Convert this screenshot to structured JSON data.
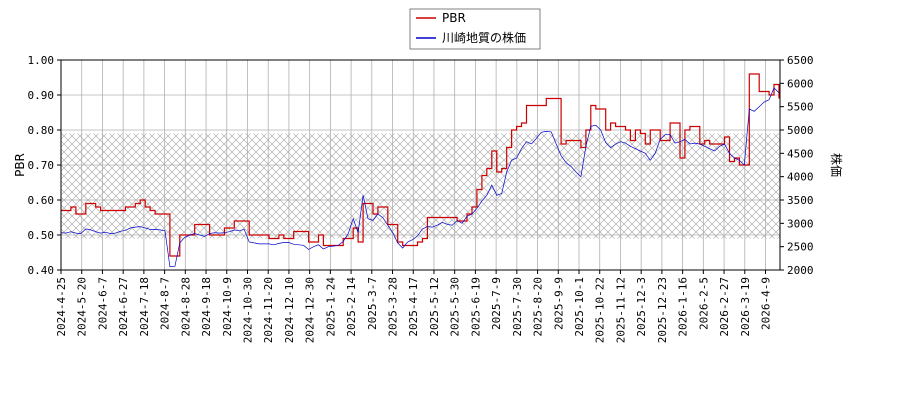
{
  "chart_data": {
    "type": "line",
    "title": "",
    "xlabel": "",
    "ylabel_left": "PBR",
    "ylabel_right": "株価",
    "ylim_left": [
      0.4,
      1.0
    ],
    "ylim_right": [
      2000,
      6500
    ],
    "yticks_left": [
      "0.40",
      "0.50",
      "0.60",
      "0.70",
      "0.80",
      "0.90",
      "1.00"
    ],
    "yticks_right": [
      "2000",
      "2500",
      "3000",
      "3500",
      "4000",
      "4500",
      "5000",
      "5500",
      "6000",
      "6500"
    ],
    "x_ticks": [
      "2024-4-25",
      "2024-5-20",
      "2024-6-7",
      "2024-6-27",
      "2024-7-18",
      "2024-8-7",
      "2024-8-28",
      "2024-9-18",
      "2024-10-9",
      "2024-10-30",
      "2024-11-20",
      "2024-12-10",
      "2024-12-30",
      "2025-1-24",
      "2025-2-14",
      "2025-3-7",
      "2025-3-28",
      "2025-4-17",
      "2025-5-12",
      "2025-5-30",
      "2025-6-19",
      "2025-7-9",
      "2025-7-30",
      "2025-8-20",
      "2025-9-9",
      "2025-10-1",
      "2025-10-22",
      "2025-11-12",
      "2025-12-3",
      "2025-12-23",
      "2026-1-16",
      "2026-2-5",
      "2026-2-27",
      "2026-3-19",
      "2026-4-9"
    ],
    "grid": true,
    "legend_position": "top-center",
    "shaded_band_left": [
      0.49,
      0.79
    ],
    "colors": {
      "pbr": "#cc0000",
      "price": "#0000cc",
      "grid": "#b0b0b0",
      "band": "#a0a0a0"
    },
    "series": [
      {
        "name": "PBR",
        "axis": "left",
        "values": [
          0.57,
          0.57,
          0.58,
          0.56,
          0.56,
          0.59,
          0.59,
          0.58,
          0.57,
          0.57,
          0.57,
          0.57,
          0.57,
          0.58,
          0.58,
          0.59,
          0.6,
          0.58,
          0.57,
          0.56,
          0.56,
          0.56,
          0.44,
          0.44,
          0.5,
          0.5,
          0.5,
          0.53,
          0.53,
          0.53,
          0.5,
          0.5,
          0.5,
          0.52,
          0.52,
          0.54,
          0.54,
          0.54,
          0.5,
          0.5,
          0.5,
          0.5,
          0.49,
          0.49,
          0.5,
          0.49,
          0.49,
          0.51,
          0.51,
          0.51,
          0.48,
          0.48,
          0.5,
          0.47,
          0.47,
          0.47,
          0.47,
          0.49,
          0.49,
          0.52,
          0.48,
          0.59,
          0.59,
          0.56,
          0.58,
          0.58,
          0.53,
          0.53,
          0.48,
          0.47,
          0.47,
          0.47,
          0.48,
          0.49,
          0.55,
          0.55,
          0.55,
          0.55,
          0.55,
          0.55,
          0.54,
          0.54,
          0.56,
          0.58,
          0.63,
          0.67,
          0.69,
          0.74,
          0.68,
          0.69,
          0.75,
          0.8,
          0.81,
          0.82,
          0.87,
          0.87,
          0.87,
          0.87,
          0.89,
          0.89,
          0.89,
          0.76,
          0.77,
          0.77,
          0.77,
          0.75,
          0.8,
          0.87,
          0.86,
          0.86,
          0.8,
          0.82,
          0.81,
          0.81,
          0.8,
          0.77,
          0.8,
          0.79,
          0.76,
          0.8,
          0.8,
          0.77,
          0.77,
          0.82,
          0.82,
          0.72,
          0.8,
          0.81,
          0.81,
          0.76,
          0.77,
          0.76,
          0.76,
          0.76,
          0.78,
          0.71,
          0.72,
          0.7,
          0.7,
          0.96,
          0.96,
          0.91,
          0.91,
          0.9,
          0.93,
          0.89
        ]
      },
      {
        "name": "川崎地質の株価",
        "axis": "right",
        "values": [
          2800,
          2790,
          2820,
          2790,
          2780,
          2880,
          2860,
          2820,
          2790,
          2810,
          2780,
          2790,
          2830,
          2850,
          2900,
          2920,
          2930,
          2900,
          2870,
          2870,
          2860,
          2840,
          2070,
          2080,
          2580,
          2700,
          2750,
          2780,
          2750,
          2720,
          2780,
          2800,
          2790,
          2800,
          2820,
          2860,
          2840,
          2870,
          2600,
          2580,
          2560,
          2560,
          2560,
          2540,
          2570,
          2590,
          2590,
          2550,
          2540,
          2530,
          2440,
          2500,
          2540,
          2450,
          2500,
          2510,
          2530,
          2610,
          2780,
          3100,
          2800,
          3600,
          3100,
          3060,
          3200,
          3120,
          2960,
          2800,
          2580,
          2470,
          2600,
          2650,
          2730,
          2880,
          2930,
          2920,
          2960,
          3020,
          2980,
          2960,
          3060,
          3000,
          3150,
          3200,
          3320,
          3480,
          3600,
          3820,
          3600,
          3640,
          4100,
          4350,
          4400,
          4600,
          4750,
          4700,
          4820,
          4950,
          4970,
          4960,
          4700,
          4450,
          4300,
          4220,
          4100,
          4000,
          4650,
          5080,
          5100,
          5000,
          4730,
          4620,
          4700,
          4750,
          4720,
          4650,
          4600,
          4550,
          4500,
          4350,
          4500,
          4800,
          4900,
          4900,
          4720,
          4750,
          4800,
          4700,
          4720,
          4700,
          4650,
          4600,
          4550,
          4650,
          4700,
          4500,
          4400,
          4350,
          4250,
          5450,
          5400,
          5500,
          5600,
          5650,
          5900,
          5800
        ]
      }
    ]
  },
  "legend": {
    "pbr_label": "PBR",
    "price_label": "川崎地質の株価"
  }
}
